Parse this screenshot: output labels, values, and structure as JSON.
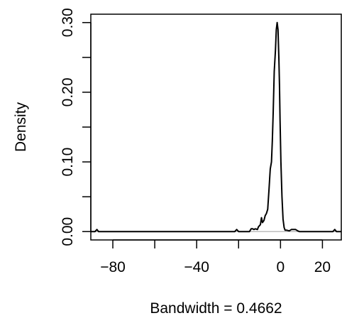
{
  "chart_data": {
    "type": "line",
    "title": "",
    "xlabel": "Bandwidth = 0.4662",
    "ylabel": "Density",
    "xlim": [
      -90.5,
      29.0
    ],
    "ylim": [
      -0.012,
      0.312
    ],
    "x_ticks": [
      -80,
      -60,
      -40,
      -20,
      0,
      20
    ],
    "x_tick_labels": [
      "-80",
      "",
      "-40",
      "",
      "0",
      "20"
    ],
    "y_ticks": [
      0.0,
      0.05,
      0.1,
      0.15,
      0.2,
      0.25,
      0.3
    ],
    "y_tick_labels": [
      "0.00",
      "",
      "0.10",
      "",
      "0.20",
      "",
      "0.30"
    ],
    "baseline": 0,
    "grid": false,
    "legend": "none",
    "colors": {
      "line": "#000000",
      "baseline": "#bebebe",
      "frame": "#000000"
    },
    "series": [
      {
        "x": [
          -90.5,
          -88.5,
          -87.6,
          -86.8,
          -70,
          -50,
          -30,
          -21.8,
          -20.9,
          -20.0,
          -17,
          -14.8,
          -14.0,
          -13.3,
          -12.7,
          -12.0,
          -11.0,
          -10.5,
          -9.6,
          -9.1,
          -8.6,
          -7.9,
          -7.3,
          -6.7,
          -6.1,
          -5.5,
          -4.9,
          -4.3,
          -3.9,
          -3.5,
          -3.0,
          -2.4,
          -2.0,
          -1.6,
          -1.2,
          -0.8,
          -0.5,
          -0.2,
          0.2,
          0.7,
          1.2,
          1.7,
          2.2,
          3.0,
          4.2,
          5.2,
          6.0,
          7.2,
          8.2,
          9.0,
          10,
          20,
          25.0,
          25.9,
          26.7,
          27.6,
          29.0
        ],
        "y": [
          0,
          0,
          0.003,
          0,
          0,
          0,
          0,
          0,
          0.003,
          0,
          0,
          0,
          0.004,
          0.004,
          0.003,
          0.004,
          0.003,
          0.007,
          0.01,
          0.02,
          0.013,
          0.016,
          0.023,
          0.026,
          0.032,
          0.06,
          0.09,
          0.1,
          0.13,
          0.17,
          0.23,
          0.26,
          0.29,
          0.3,
          0.29,
          0.25,
          0.21,
          0.16,
          0.1,
          0.05,
          0.018,
          0.006,
          0.002,
          0.002,
          0.001,
          0.003,
          0.003,
          0.003,
          0.001,
          0,
          0,
          0,
          0,
          0.003,
          0,
          0,
          0
        ]
      }
    ]
  }
}
